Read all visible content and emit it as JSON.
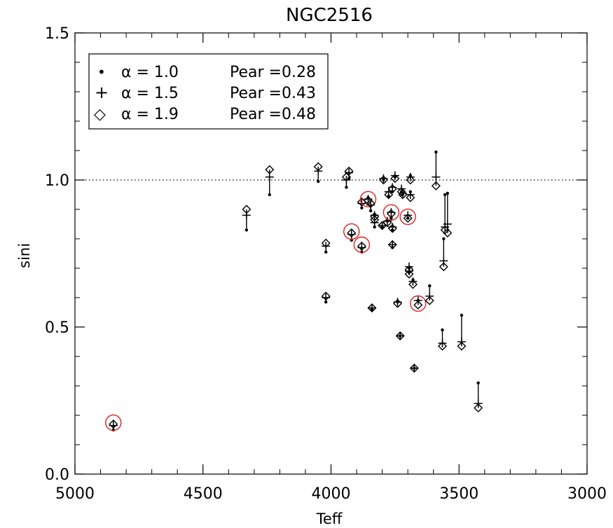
{
  "chart_data": {
    "type": "scatter",
    "title": "NGC2516",
    "xlabel": "Teff",
    "ylabel": "sini",
    "xlim": [
      5000,
      3000
    ],
    "ylim": [
      0.0,
      1.5
    ],
    "x_ticks": [
      5000,
      4500,
      4000,
      3500,
      3000
    ],
    "x_tick_labels": [
      "5000",
      "4500",
      "4000",
      "3500",
      "3000"
    ],
    "y_ticks": [
      0.0,
      0.5,
      1.0,
      1.5
    ],
    "y_tick_labels": [
      "0.0",
      "0.5",
      "1.0",
      "1.5"
    ],
    "reference_line": {
      "y": 1.0,
      "style": "dotted"
    },
    "grid": false,
    "legend": {
      "position": "top-left",
      "entries": [
        {
          "symbol": "dot",
          "symbol_glyph": "•",
          "alpha_label": "α = 1.0",
          "pear_label": "Pear =0.28"
        },
        {
          "symbol": "plus",
          "symbol_glyph": "+",
          "alpha_label": "α = 1.5",
          "pear_label": "Pear =0.43"
        },
        {
          "symbol": "diamond",
          "symbol_glyph": "◇",
          "alpha_label": "α = 1.9",
          "pear_label": "Pear =0.48"
        }
      ]
    },
    "series": [
      {
        "name": "α = 1.0 Pear =0.28",
        "marker": "dot"
      },
      {
        "name": "α = 1.5 Pear =0.43",
        "marker": "plus"
      },
      {
        "name": "α = 1.9 Pear =0.48",
        "marker": "diamond"
      }
    ],
    "points": [
      {
        "teff": 4850,
        "a10": 0.15,
        "a15": 0.165,
        "a19": 0.17,
        "circled": true
      },
      {
        "teff": 4330,
        "a10": 0.83,
        "a15": 0.88,
        "a19": 0.9,
        "circled": false
      },
      {
        "teff": 4240,
        "a10": 0.95,
        "a15": 1.01,
        "a19": 1.035,
        "circled": false
      },
      {
        "teff": 4050,
        "a10": 0.995,
        "a15": 1.03,
        "a19": 1.045,
        "circled": false
      },
      {
        "teff": 4020,
        "a10": 0.755,
        "a15": 0.775,
        "a19": 0.785,
        "circled": false
      },
      {
        "teff": 4020,
        "a10": 0.585,
        "a15": 0.6,
        "a19": 0.605,
        "circled": false
      },
      {
        "teff": 3940,
        "a10": 0.975,
        "a15": 1.0,
        "a19": 1.01,
        "circled": false
      },
      {
        "teff": 3930,
        "a10": 1.005,
        "a15": 1.025,
        "a19": 1.03,
        "circled": false
      },
      {
        "teff": 3920,
        "a10": 0.795,
        "a15": 0.815,
        "a19": 0.82,
        "circled": true
      },
      {
        "teff": 3880,
        "a10": 0.755,
        "a15": 0.77,
        "a19": 0.775,
        "circled": true
      },
      {
        "teff": 3880,
        "a10": 0.905,
        "a15": 0.92,
        "a19": 0.925,
        "circled": false
      },
      {
        "teff": 3855,
        "a10": 0.94,
        "a15": 0.935,
        "a19": 0.93,
        "circled": true
      },
      {
        "teff": 3845,
        "a10": 0.895,
        "a15": 0.915,
        "a19": 0.92,
        "circled": false
      },
      {
        "teff": 3840,
        "a10": 0.56,
        "a15": 0.565,
        "a19": 0.565,
        "circled": false
      },
      {
        "teff": 3830,
        "a10": 0.84,
        "a15": 0.855,
        "a19": 0.865,
        "circled": false
      },
      {
        "teff": 3830,
        "a10": 0.88,
        "a15": 0.88,
        "a19": 0.875,
        "circled": false
      },
      {
        "teff": 3800,
        "a10": 0.84,
        "a15": 0.845,
        "a19": 0.845,
        "circled": false
      },
      {
        "teff": 3795,
        "a10": 1.0,
        "a15": 1.005,
        "a19": 1.0,
        "circled": false
      },
      {
        "teff": 3780,
        "a10": 0.86,
        "a15": 0.86,
        "a19": 0.855,
        "circled": false
      },
      {
        "teff": 3775,
        "a10": 0.945,
        "a15": 0.96,
        "a19": 0.95,
        "circled": false
      },
      {
        "teff": 3765,
        "a10": 0.87,
        "a15": 0.89,
        "a19": 0.885,
        "circled": true
      },
      {
        "teff": 3760,
        "a10": 0.96,
        "a15": 0.975,
        "a19": 0.97,
        "circled": false
      },
      {
        "teff": 3760,
        "a10": 0.83,
        "a15": 0.84,
        "a19": 0.835,
        "circled": false
      },
      {
        "teff": 3760,
        "a10": 0.77,
        "a15": 0.78,
        "a19": 0.78,
        "circled": false
      },
      {
        "teff": 3750,
        "a10": 1.01,
        "a15": 1.015,
        "a19": 1.005,
        "circled": false
      },
      {
        "teff": 3740,
        "a10": 0.585,
        "a15": 0.585,
        "a19": 0.58,
        "circled": false
      },
      {
        "teff": 3730,
        "a10": 0.47,
        "a15": 0.47,
        "a19": 0.47,
        "circled": false
      },
      {
        "teff": 3725,
        "a10": 0.96,
        "a15": 0.97,
        "a19": 0.96,
        "circled": false
      },
      {
        "teff": 3720,
        "a10": 0.95,
        "a15": 0.955,
        "a19": 0.95,
        "circled": false
      },
      {
        "teff": 3700,
        "a10": 0.87,
        "a15": 0.88,
        "a19": 0.87,
        "circled": true
      },
      {
        "teff": 3695,
        "a10": 0.7,
        "a15": 0.705,
        "a19": 0.695,
        "circled": false
      },
      {
        "teff": 3695,
        "a10": 0.685,
        "a15": 0.69,
        "a19": 0.68,
        "circled": false
      },
      {
        "teff": 3690,
        "a10": 1.015,
        "a15": 1.01,
        "a19": 1.0,
        "circled": false
      },
      {
        "teff": 3690,
        "a10": 0.96,
        "a15": 0.95,
        "a19": 0.94,
        "circled": false
      },
      {
        "teff": 3680,
        "a10": 0.66,
        "a15": 0.655,
        "a19": 0.645,
        "circled": false
      },
      {
        "teff": 3675,
        "a10": 0.36,
        "a15": 0.36,
        "a19": 0.36,
        "circled": false
      },
      {
        "teff": 3660,
        "a10": 0.59,
        "a15": 0.59,
        "a19": 0.575,
        "circled": true
      },
      {
        "teff": 3615,
        "a10": 0.64,
        "a15": 0.605,
        "a19": 0.59,
        "circled": false
      },
      {
        "teff": 3590,
        "a10": 1.095,
        "a15": 1.01,
        "a19": 0.98,
        "circled": false
      },
      {
        "teff": 3565,
        "a10": 0.49,
        "a15": 0.445,
        "a19": 0.435,
        "circled": false
      },
      {
        "teff": 3560,
        "a10": 0.8,
        "a15": 0.725,
        "a19": 0.705,
        "circled": false
      },
      {
        "teff": 3555,
        "a10": 0.95,
        "a15": 0.84,
        "a19": 0.83,
        "circled": false
      },
      {
        "teff": 3545,
        "a10": 0.955,
        "a15": 0.85,
        "a19": 0.82,
        "circled": false
      },
      {
        "teff": 3490,
        "a10": 0.54,
        "a15": 0.45,
        "a19": 0.435,
        "circled": false
      },
      {
        "teff": 3425,
        "a10": 0.31,
        "a15": 0.24,
        "a19": 0.225,
        "circled": false
      }
    ]
  }
}
